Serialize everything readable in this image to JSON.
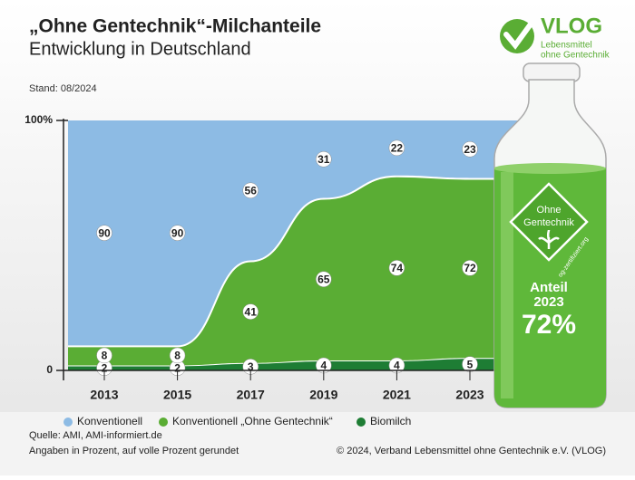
{
  "chart_data": {
    "type": "stacked_area",
    "title": "„Ohne Gentechnik“-Milchanteile",
    "subtitle": "Entwicklung in Deutschland",
    "note_date": "Stand: 08/2024",
    "categories": [
      "2013",
      "2015",
      "2017",
      "2019",
      "2021",
      "2023"
    ],
    "series": [
      {
        "name": "Konventionell",
        "color": "#8dbbe4",
        "values": [
          90,
          90,
          56,
          31,
          22,
          23
        ]
      },
      {
        "name": "Konventionell „Ohne Gentechnik“",
        "color": "#5aad34",
        "values": [
          8,
          8,
          41,
          65,
          74,
          72
        ]
      },
      {
        "name": "Biomilch",
        "color": "#1e7d34",
        "values": [
          2,
          2,
          3,
          4,
          4,
          5
        ]
      }
    ],
    "ylim": [
      0,
      100
    ],
    "yticks": [
      0,
      {
        "value": 100,
        "label": "100%"
      }
    ],
    "source": "Quelle: AMI, AMI-informiert.de",
    "footnote": "Angaben in Prozent, auf volle Prozent gerundet",
    "copyright": "© 2024, Verband Lebensmittel ohne Gentechnik e.V. (VLOG)"
  },
  "logo": {
    "name": "VLOG",
    "tagline": [
      "Lebensmittel",
      "ohne Gentechnik"
    ]
  },
  "bottle": {
    "badge": [
      "Ohne",
      "Gentechnik"
    ],
    "badge_url": "og-zertifiziert.org",
    "share_label": [
      "Anteil",
      "2023"
    ],
    "share_value": "72%"
  }
}
